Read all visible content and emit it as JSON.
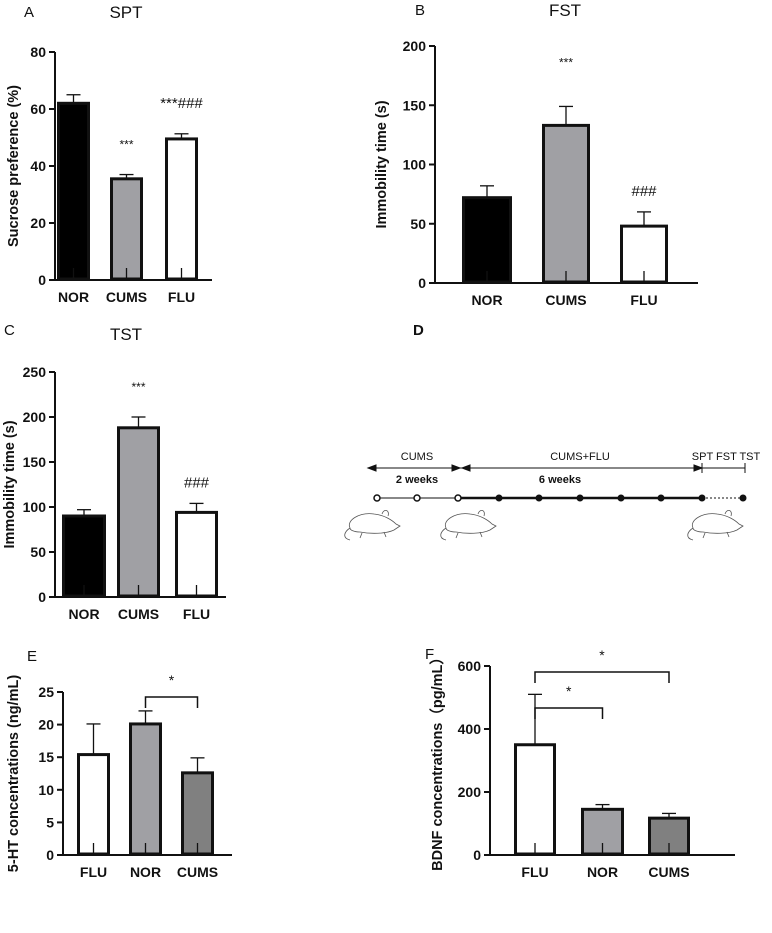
{
  "chart_data": [
    {
      "panel": "A",
      "type": "bar",
      "title": "SPT",
      "xlabel": "",
      "ylabel": "Sucrose preference (%)",
      "ylim": [
        0,
        80
      ],
      "yticks": [
        0,
        20,
        40,
        60,
        80
      ],
      "categories": [
        "NOR",
        "CUMS",
        "FLU"
      ],
      "values": [
        62,
        35.5,
        49.5
      ],
      "errors": [
        3,
        1.5,
        1.8
      ],
      "colors": [
        "#000000",
        "#a0a0a4",
        "#ffffff"
      ],
      "annotations": [
        "",
        "***",
        "***###"
      ],
      "brackets": []
    },
    {
      "panel": "B",
      "type": "bar",
      "title": "FST",
      "xlabel": "",
      "ylabel": "Immobility time (s)",
      "ylim": [
        0,
        200
      ],
      "yticks": [
        0,
        50,
        100,
        150,
        200
      ],
      "categories": [
        "NOR",
        "CUMS",
        "FLU"
      ],
      "values": [
        72,
        133,
        48
      ],
      "errors": [
        10,
        16,
        12
      ],
      "colors": [
        "#000000",
        "#a0a0a4",
        "#ffffff"
      ],
      "annotations": [
        "",
        "***",
        "###"
      ],
      "brackets": []
    },
    {
      "panel": "C",
      "type": "bar",
      "title": "TST",
      "xlabel": "",
      "ylabel": "Immobility time (s)",
      "ylim": [
        0,
        250
      ],
      "yticks": [
        0,
        50,
        100,
        150,
        200,
        250
      ],
      "categories": [
        "NOR",
        "CUMS",
        "FLU"
      ],
      "values": [
        90,
        188,
        94
      ],
      "errors": [
        7,
        12,
        10
      ],
      "colors": [
        "#000000",
        "#a0a0a4",
        "#ffffff"
      ],
      "annotations": [
        "",
        "***",
        "###"
      ],
      "brackets": []
    },
    {
      "panel": "E",
      "type": "bar",
      "title": "",
      "xlabel": "",
      "ylabel": "5-HT concentrations (ng/mL)",
      "ylim": [
        0,
        25
      ],
      "yticks": [
        0,
        5,
        10,
        15,
        20,
        25
      ],
      "categories": [
        "FLU",
        "NOR",
        "CUMS"
      ],
      "values": [
        15.4,
        20.1,
        12.6
      ],
      "errors": [
        4.7,
        2.0,
        2.3
      ],
      "colors": [
        "#ffffff",
        "#a0a0a4",
        "#808080"
      ],
      "annotations": [
        "",
        "",
        ""
      ],
      "brackets": [
        {
          "from": "NOR",
          "to": "CUMS",
          "label": "*"
        }
      ]
    },
    {
      "panel": "F",
      "type": "bar",
      "title": "",
      "xlabel": "",
      "ylabel": "BDNF concentrations（pg/mL）",
      "ylim": [
        0,
        600
      ],
      "yticks": [
        0,
        200,
        400,
        600
      ],
      "categories": [
        "FLU",
        "NOR",
        "CUMS"
      ],
      "values": [
        350,
        145,
        117
      ],
      "errors": [
        160,
        15,
        15
      ],
      "colors": [
        "#ffffff",
        "#a0a0a4",
        "#808080"
      ],
      "annotations": [
        "",
        "",
        ""
      ],
      "brackets": [
        {
          "from": "FLU",
          "to": "NOR",
          "label": "*"
        },
        {
          "from": "FLU",
          "to": "CUMS",
          "label": "*"
        }
      ]
    }
  ],
  "timeline": {
    "panel": "D",
    "phase1_label": "CUMS",
    "phase1_duration": "2 weeks",
    "phase2_label": "CUMS+FLU",
    "phase2_duration": "6 weeks",
    "tests_label": "SPT FST TST"
  }
}
